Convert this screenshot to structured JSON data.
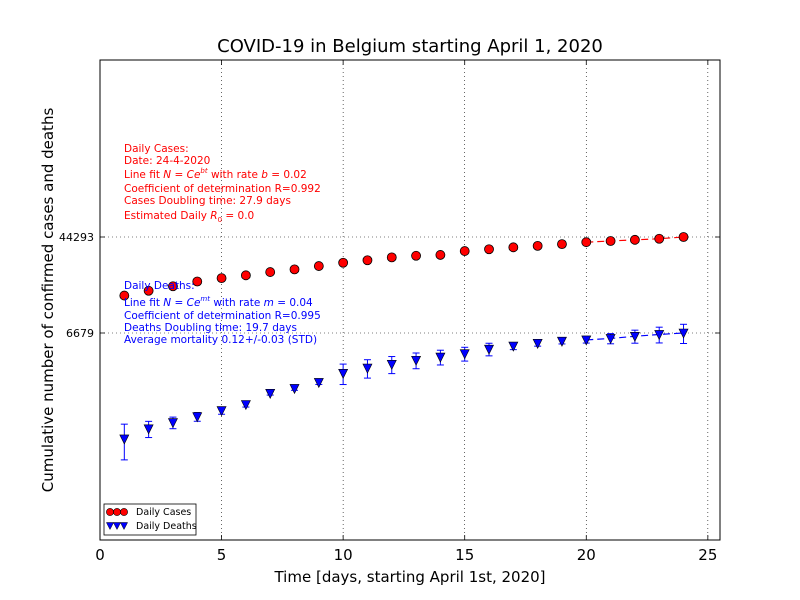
{
  "chart_data": {
    "type": "scatter",
    "title": "COVID-19 in Belgium starting April 1, 2020",
    "xlabel": "Time [days, starting April 1st, 2020]",
    "ylabel": "Cumulative number of confirmed cases and deaths",
    "xlim": [
      0,
      25.5
    ],
    "xticks": [
      "0",
      "5",
      "10",
      "15",
      "20",
      "25"
    ],
    "yscale": "log",
    "yticks": [
      "44293",
      "6679"
    ],
    "grid": true,
    "legend_position": "lower-left",
    "x": [
      1,
      2,
      3,
      4,
      5,
      6,
      7,
      8,
      9,
      10,
      11,
      12,
      13,
      14,
      15,
      16,
      17,
      18,
      19,
      20,
      21,
      22,
      23,
      24
    ],
    "series": [
      {
        "name": "Daily Cases",
        "color": "#ff0000",
        "marker": "circle",
        "values": [
          13964,
          15348,
          16770,
          18431,
          19691,
          20814,
          22194,
          23403,
          24983,
          26667,
          28018,
          29647,
          30589,
          31119,
          33573,
          34809,
          36138,
          37183,
          38496,
          39983,
          40956,
          41889,
          42797,
          44293
        ],
        "fit": {
          "from_x": 20,
          "to_x": 24,
          "values": [
            39983,
            40956,
            41889,
            42797,
            44293
          ]
        }
      },
      {
        "name": "Daily Deaths",
        "color": "#0000ff",
        "marker": "triangle-down",
        "values": [
          828,
          1011,
          1143,
          1283,
          1447,
          1632,
          2035,
          2240,
          2523,
          3019,
          3346,
          3600,
          3903,
          4157,
          4440,
          4857,
          5163,
          5453,
          5683,
          5828,
          5998,
          6262,
          6490,
          6679
        ],
        "errors": [
          280,
          160,
          130,
          110,
          100,
          80,
          70,
          80,
          100,
          600,
          600,
          600,
          600,
          600,
          600,
          600,
          350,
          300,
          300,
          350,
          600,
          800,
          1000,
          1250
        ],
        "fit": {
          "from_x": 20,
          "to_x": 24,
          "values": [
            5828,
            5998,
            6262,
            6490,
            6679
          ]
        }
      }
    ],
    "annotations": {
      "cases": [
        "Daily Cases:",
        "Date: 24-4-2020",
        "Line fit N = Ce^{bt} with rate b = 0.02",
        "Coefficient of determination R=0.992",
        "Cases Doubling time: 27.9 days",
        "Estimated Daily R0 = 0.0"
      ],
      "deaths": [
        "Daily Deaths:",
        "Line fit N = Ce^{mt} with rate m = 0.04",
        "Coefficient of determination R=0.995",
        "Deaths Doubling time: 19.7 days",
        "Average mortality 0.12+/-0.03 (STD)"
      ]
    }
  }
}
